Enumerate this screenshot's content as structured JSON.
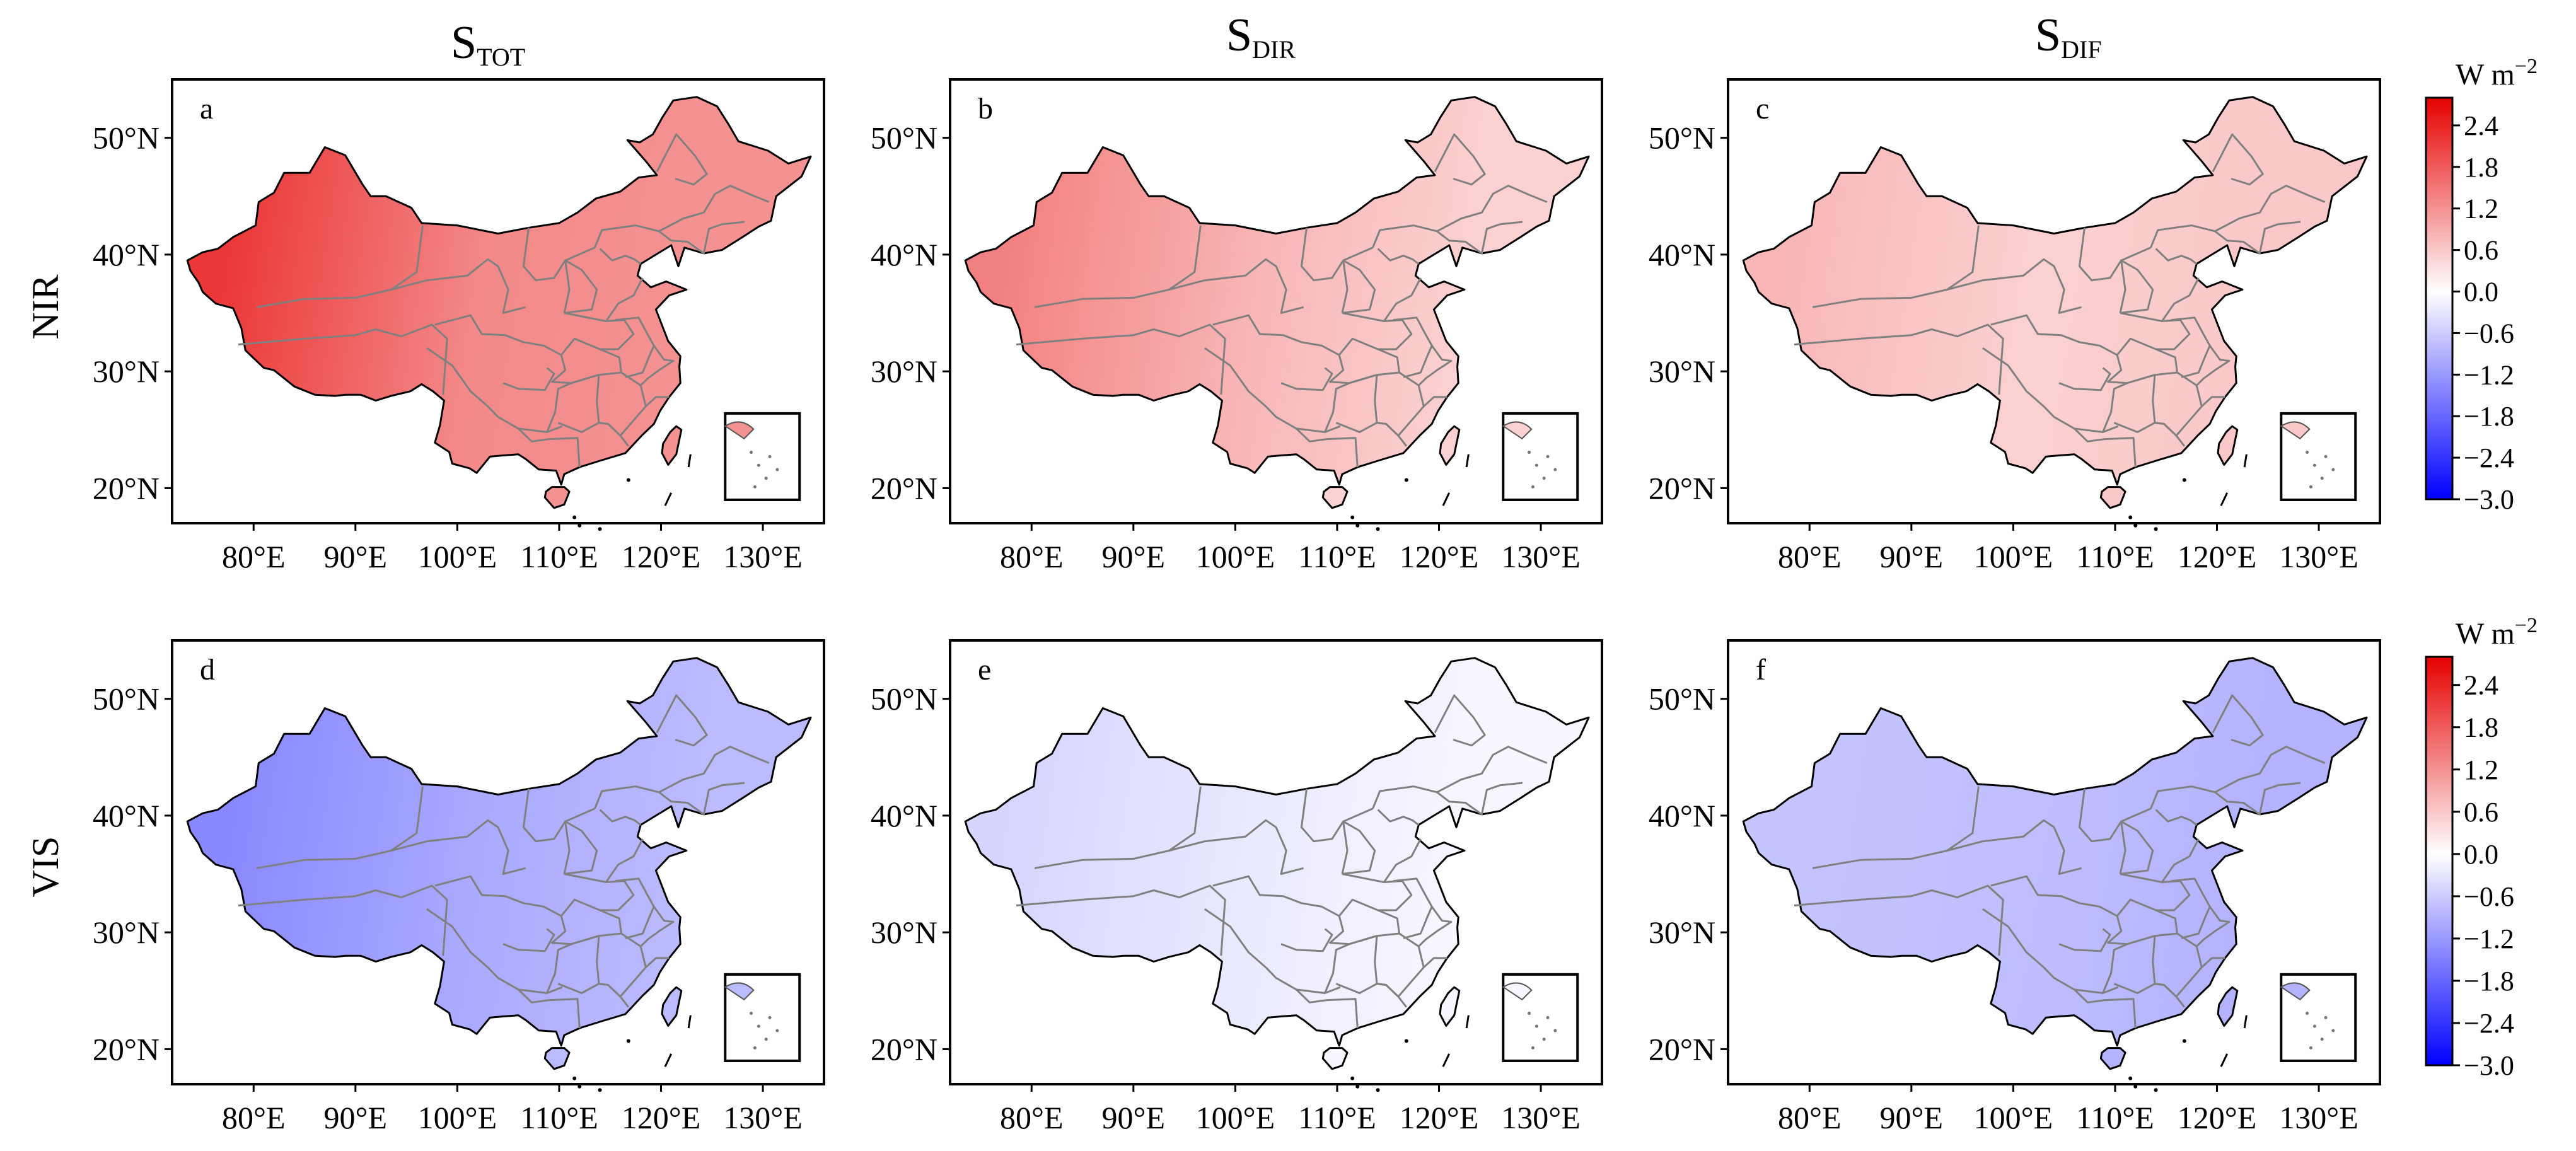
{
  "chart_data": {
    "type": "heatmap",
    "description_units": "W m-2",
    "columns": [
      {
        "main": "S",
        "sub": "TOT"
      },
      {
        "main": "S",
        "sub": "DIR"
      },
      {
        "main": "S",
        "sub": "DIF"
      }
    ],
    "rows": [
      "NIR",
      "VIS"
    ],
    "x_ticks": [
      "80°E",
      "90°E",
      "100°E",
      "110°E",
      "120°E",
      "130°E"
    ],
    "x_tick_values": [
      80,
      90,
      100,
      110,
      120,
      130
    ],
    "y_ticks": [
      "50°N",
      "40°N",
      "30°N",
      "20°N"
    ],
    "y_tick_values": [
      50,
      40,
      30,
      20
    ],
    "xlim": [
      72,
      136
    ],
    "ylim": [
      17,
      55
    ],
    "panels": [
      {
        "label": "a",
        "row": "NIR",
        "column": "TOT",
        "west_value": 2.2,
        "east_value": 1.3,
        "southeast_value": 1.2
      },
      {
        "label": "b",
        "row": "NIR",
        "column": "DIR",
        "west_value": 1.4,
        "east_value": 0.8,
        "southeast_value": 0.5
      },
      {
        "label": "c",
        "row": "NIR",
        "column": "DIF",
        "west_value": 0.8,
        "east_value": 0.5,
        "southeast_value": 0.6
      },
      {
        "label": "d",
        "row": "VIS",
        "column": "TOT",
        "west_value": -1.4,
        "east_value": -1.0,
        "southeast_value": -0.8
      },
      {
        "label": "e",
        "row": "VIS",
        "column": "DIR",
        "west_value": -0.5,
        "east_value": -0.25,
        "southeast_value": -0.1
      },
      {
        "label": "f",
        "row": "VIS",
        "column": "DIF",
        "west_value": -0.7,
        "east_value": -0.75,
        "southeast_value": -0.9
      }
    ],
    "colorbar": {
      "unit": "W m",
      "unit_exp": "−2",
      "range": [
        -3.0,
        2.8
      ],
      "ticks": [
        "2.4",
        "1.8",
        "1.2",
        "0.6",
        "0.0",
        "−0.6",
        "−1.2",
        "−1.8",
        "−2.4",
        "−3.0"
      ],
      "tick_values": [
        2.4,
        1.8,
        1.2,
        0.6,
        0.0,
        -0.6,
        -1.2,
        -1.8,
        -2.4,
        -3.0
      ],
      "colors": {
        "max": "#e60000",
        "mid": "#ffffff",
        "min": "#0000ff"
      }
    }
  }
}
